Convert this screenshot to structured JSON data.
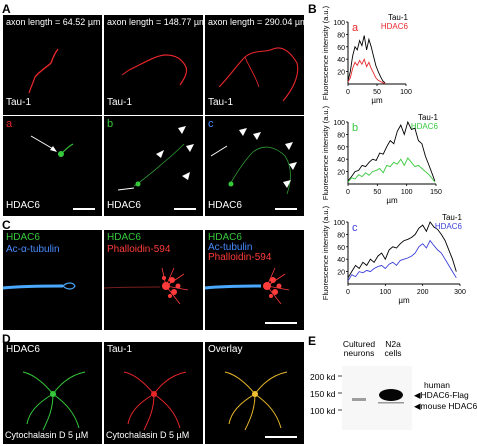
{
  "panel_labels": {
    "A": "A",
    "B": "B",
    "C": "C",
    "D": "D",
    "E": "E"
  },
  "panel_a": {
    "axon_lengths": [
      "axon length = 64.52 µm",
      "axon length = 148.77 µm",
      "axon length = 290.04 µm"
    ],
    "tau_label": "Tau-1",
    "hdac_label": "HDAC6",
    "sub_labels": [
      "a",
      "b",
      "c"
    ]
  },
  "panel_b": {
    "ylabel": "Fluorescence intensity (a.u.)",
    "xlabel": "µm",
    "colors": {
      "tau": "#000000",
      "a": "#e8262a",
      "b": "#35c93b",
      "c": "#3a3fd6"
    }
  },
  "chart_data": [
    {
      "type": "line",
      "subpanel": "a",
      "xlim": [
        0,
        100
      ],
      "ylim": [
        0,
        100
      ],
      "xticks": [
        0,
        50,
        100
      ],
      "yticks": [
        20,
        40,
        60,
        80,
        100
      ],
      "xlabel": "µm",
      "ylabel": "Fluorescence intensity (a.u.)",
      "series": [
        {
          "name": "Tau-1",
          "color": "#000000",
          "x": [
            0,
            4,
            8,
            12,
            16,
            20,
            24,
            28,
            32,
            36,
            40,
            44,
            48,
            52,
            56,
            60,
            64
          ],
          "y": [
            5,
            20,
            45,
            60,
            55,
            70,
            62,
            78,
            55,
            72,
            60,
            45,
            30,
            20,
            12,
            5,
            2
          ]
        },
        {
          "name": "HDAC6",
          "color": "#e8262a",
          "x": [
            0,
            4,
            8,
            12,
            16,
            20,
            24,
            28,
            32,
            36,
            40,
            44,
            48,
            52,
            56,
            60,
            64
          ],
          "y": [
            3,
            10,
            25,
            35,
            30,
            38,
            32,
            40,
            28,
            35,
            25,
            18,
            10,
            6,
            4,
            2,
            1
          ]
        }
      ]
    },
    {
      "type": "line",
      "subpanel": "b",
      "xlim": [
        0,
        150
      ],
      "ylim": [
        0,
        100
      ],
      "xticks": [
        0,
        50,
        100,
        150
      ],
      "yticks": [
        20,
        40,
        60,
        80,
        100
      ],
      "xlabel": "µm",
      "ylabel": "Fluorescence intensity (a.u.)",
      "series": [
        {
          "name": "Tau-1",
          "color": "#000000",
          "x": [
            0,
            6,
            12,
            18,
            24,
            30,
            36,
            42,
            48,
            54,
            60,
            66,
            72,
            78,
            84,
            90,
            96,
            102,
            108,
            114,
            120,
            126,
            132,
            138,
            144,
            148
          ],
          "y": [
            5,
            12,
            20,
            22,
            30,
            28,
            35,
            40,
            38,
            50,
            48,
            60,
            70,
            65,
            85,
            95,
            80,
            100,
            88,
            90,
            70,
            65,
            45,
            30,
            15,
            5
          ]
        },
        {
          "name": "HDAC6",
          "color": "#35c93b",
          "x": [
            0,
            6,
            12,
            18,
            24,
            30,
            36,
            42,
            48,
            54,
            60,
            66,
            72,
            78,
            84,
            90,
            96,
            102,
            108,
            114,
            120,
            126,
            132,
            138,
            144,
            148
          ],
          "y": [
            3,
            10,
            8,
            15,
            12,
            18,
            14,
            20,
            22,
            25,
            18,
            30,
            28,
            35,
            32,
            40,
            30,
            42,
            35,
            28,
            30,
            25,
            20,
            15,
            8,
            3
          ]
        }
      ]
    },
    {
      "type": "line",
      "subpanel": "c",
      "xlim": [
        0,
        300
      ],
      "ylim": [
        0,
        100
      ],
      "xticks": [
        0,
        100,
        200,
        300
      ],
      "yticks": [
        20,
        40,
        60,
        80,
        100
      ],
      "xlabel": "µm",
      "ylabel": "Fluorescence intensity (a.u.)",
      "series": [
        {
          "name": "Tau-1",
          "color": "#000000",
          "x": [
            0,
            10,
            20,
            30,
            40,
            50,
            60,
            70,
            80,
            90,
            100,
            110,
            120,
            130,
            140,
            150,
            160,
            170,
            180,
            190,
            200,
            210,
            220,
            230,
            240,
            250,
            260,
            270,
            280,
            290
          ],
          "y": [
            10,
            20,
            30,
            25,
            35,
            30,
            40,
            35,
            45,
            50,
            40,
            55,
            60,
            58,
            65,
            70,
            72,
            75,
            80,
            90,
            95,
            85,
            100,
            92,
            88,
            80,
            70,
            55,
            40,
            20
          ]
        },
        {
          "name": "HDAC6",
          "color": "#3a3fd6",
          "x": [
            0,
            10,
            20,
            30,
            40,
            50,
            60,
            70,
            80,
            90,
            100,
            110,
            120,
            130,
            140,
            150,
            160,
            170,
            180,
            190,
            200,
            210,
            220,
            230,
            240,
            250,
            260,
            270,
            280,
            290
          ],
          "y": [
            5,
            15,
            12,
            20,
            18,
            22,
            20,
            25,
            28,
            30,
            25,
            32,
            35,
            30,
            38,
            40,
            42,
            45,
            50,
            60,
            65,
            58,
            70,
            62,
            55,
            50,
            40,
            30,
            20,
            10
          ]
        }
      ]
    }
  ],
  "panel_c": {
    "labels": [
      [
        "HDAC6",
        "Ac-α-tubulin"
      ],
      [
        "HDAC6",
        "Phalloidin-594"
      ],
      [
        "HDAC6",
        "Ac-tubulin",
        "Phalloidin-594"
      ]
    ]
  },
  "panel_d": {
    "labels": [
      "HDAC6",
      "Tau-1",
      "Overlay"
    ],
    "treatment": "Cytochalasin D 5 µM"
  },
  "panel_e": {
    "col1": "Cultured neurons",
    "col2": "N2a cells",
    "markers": [
      "200 kd",
      "150 kd",
      "100 kd"
    ],
    "human": "human",
    "band_flag": "HDAC6-Flag",
    "band_mouse": "mouse HDAC6"
  }
}
